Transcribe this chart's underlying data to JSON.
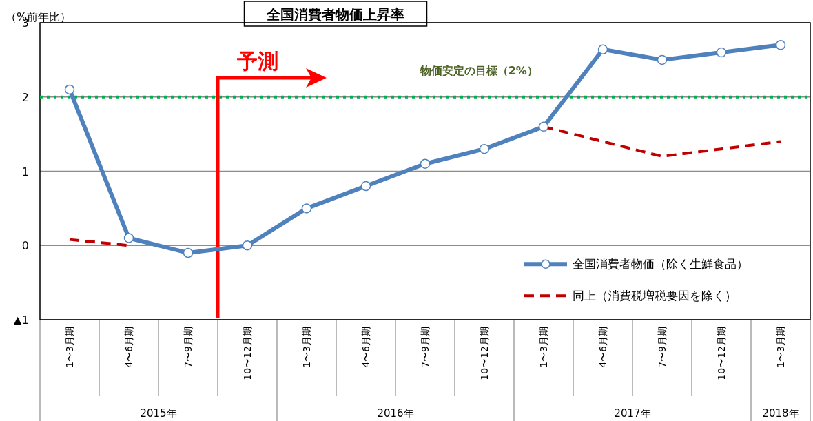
{
  "chart_data": {
    "type": "line",
    "title": "全国消費者物価上昇率",
    "ylabel": "（%前年比）",
    "categories": [
      "1〜3月期",
      "4〜6月期",
      "7〜9月期",
      "10〜12月期",
      "1〜3月期",
      "4〜6月期",
      "7〜9月期",
      "10〜12月期",
      "1〜3月期",
      "4〜6月期",
      "7〜9月期",
      "10〜12月期",
      "1〜3月期"
    ],
    "annotations": [
      "予測",
      "2015年",
      "2016年",
      "2017年",
      "2018年"
    ],
    "series": [
      {
        "name": "全国消費者物価（除く生鮮食品）",
        "color": "#4f81bd",
        "marker": "circle",
        "line_style": "solid",
        "values": [
          2.1,
          0.1,
          -0.1,
          0.0,
          0.5,
          0.8,
          1.1,
          1.3,
          1.6,
          2.64,
          2.5,
          2.6,
          2.7
        ]
      },
      {
        "name": "同上（消費税増税要因を除く）",
        "color": "#c00000",
        "marker": "none",
        "line_style": "dashed",
        "values": [
          0.08,
          0.0,
          null,
          null,
          null,
          null,
          null,
          null,
          1.6,
          1.4,
          1.2,
          1.3,
          1.4
        ]
      }
    ],
    "ylim": [
      -1,
      3
    ],
    "yticks": [
      {
        "value": -1,
        "label": "▲1"
      },
      0,
      1,
      2,
      3
    ],
    "grid": "y",
    "legend": "bottom right",
    "ref_lines": [
      {
        "axis": "y",
        "value": 2,
        "label": "物価安定の目標（2%）",
        "color": "#00b050",
        "line_style": "dotted"
      }
    ]
  }
}
